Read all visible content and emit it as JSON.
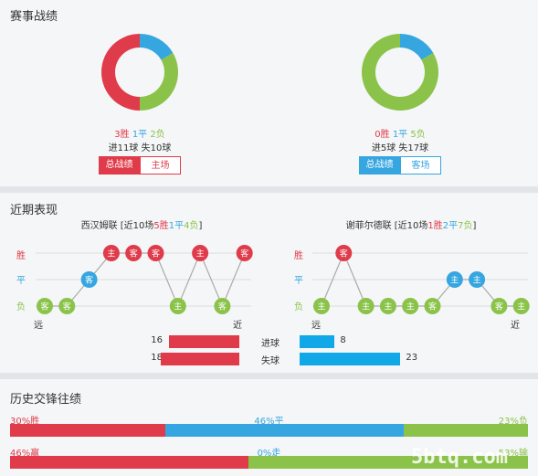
{
  "sections": {
    "record_title": "赛事战绩",
    "recent_title": "近期表现",
    "h2h_title": "历史交锋往绩"
  },
  "home": {
    "record": {
      "win": "3胜",
      "draw": "1平",
      "loss": "2负",
      "goals": "进11球",
      "conceded": "失10球",
      "win_n": 3,
      "draw_n": 1,
      "loss_n": 2
    },
    "btn_total": "总战绩",
    "btn_venue": "主场",
    "team_prefix": "西汉姆联 [近10场",
    "w": "5胜",
    "d": "1平",
    "l": "4负",
    "team_suffix": "]",
    "goals_for": "16",
    "goals_against": "18",
    "goals_for_n": 16,
    "goals_against_n": 18,
    "matches": [
      {
        "label": "客",
        "res": "L"
      },
      {
        "label": "客",
        "res": "L"
      },
      {
        "label": "客",
        "res": "D"
      },
      {
        "label": "主",
        "res": "W"
      },
      {
        "label": "客",
        "res": "W"
      },
      {
        "label": "客",
        "res": "W"
      },
      {
        "label": "主",
        "res": "L"
      },
      {
        "label": "主",
        "res": "W"
      },
      {
        "label": "客",
        "res": "L"
      },
      {
        "label": "客",
        "res": "W"
      }
    ]
  },
  "away": {
    "record": {
      "win": "0胜",
      "draw": "1平",
      "loss": "5负",
      "goals": "进5球",
      "conceded": "失17球",
      "win_n": 0,
      "draw_n": 1,
      "loss_n": 5
    },
    "btn_total": "总战绩",
    "btn_venue": "客场",
    "team_prefix": "谢菲尔德联 [近10场",
    "w": "1胜",
    "d": "2平",
    "l": "7负",
    "team_suffix": "]",
    "goals_for": "8",
    "goals_against": "23",
    "goals_for_n": 8,
    "goals_against_n": 23,
    "matches": [
      {
        "label": "主",
        "res": "L"
      },
      {
        "label": "客",
        "res": "W"
      },
      {
        "label": "主",
        "res": "L"
      },
      {
        "label": "主",
        "res": "L"
      },
      {
        "label": "主",
        "res": "L"
      },
      {
        "label": "客",
        "res": "L"
      },
      {
        "label": "主",
        "res": "D"
      },
      {
        "label": "主",
        "res": "D"
      },
      {
        "label": "客",
        "res": "L"
      },
      {
        "label": "主",
        "res": "L"
      }
    ]
  },
  "axis": {
    "win": "胜",
    "draw": "平",
    "loss": "负",
    "far": "远",
    "near": "近"
  },
  "goals_labels": {
    "scored": "进球",
    "conceded": "失球"
  },
  "h2h": {
    "row1": {
      "a": "30%胜",
      "b": "46%平",
      "c": "23%负",
      "a_n": 30,
      "b_n": 46,
      "c_n": 23
    },
    "row2": {
      "a": "46%赢",
      "b": "0%走",
      "c": "53%输",
      "a_n": 46,
      "b_n": 0,
      "c_n": 53
    }
  },
  "colors": {
    "win": "#e03b4a",
    "draw": "#36a6e0",
    "loss": "#8bc34a",
    "grey": "#aaaaaa"
  },
  "watermark": "5btq.com"
}
